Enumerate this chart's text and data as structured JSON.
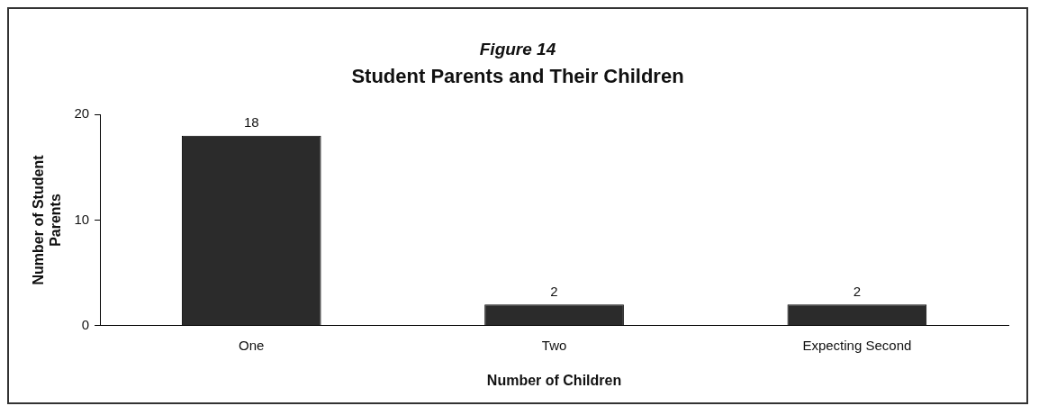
{
  "chart_data": {
    "type": "bar",
    "title": "Figure 14",
    "subtitle": "Student Parents and Their Children",
    "xlabel": "Number of Children",
    "ylabel": "Number of Student Parents",
    "categories": [
      "One",
      "Two",
      "Expecting Second"
    ],
    "values": [
      18,
      2,
      2
    ],
    "color": "#2b2b2b",
    "ylim": [
      0,
      20
    ],
    "yticks": [
      0,
      10,
      20
    ],
    "grid": false,
    "legend": false,
    "data_labels": true
  }
}
